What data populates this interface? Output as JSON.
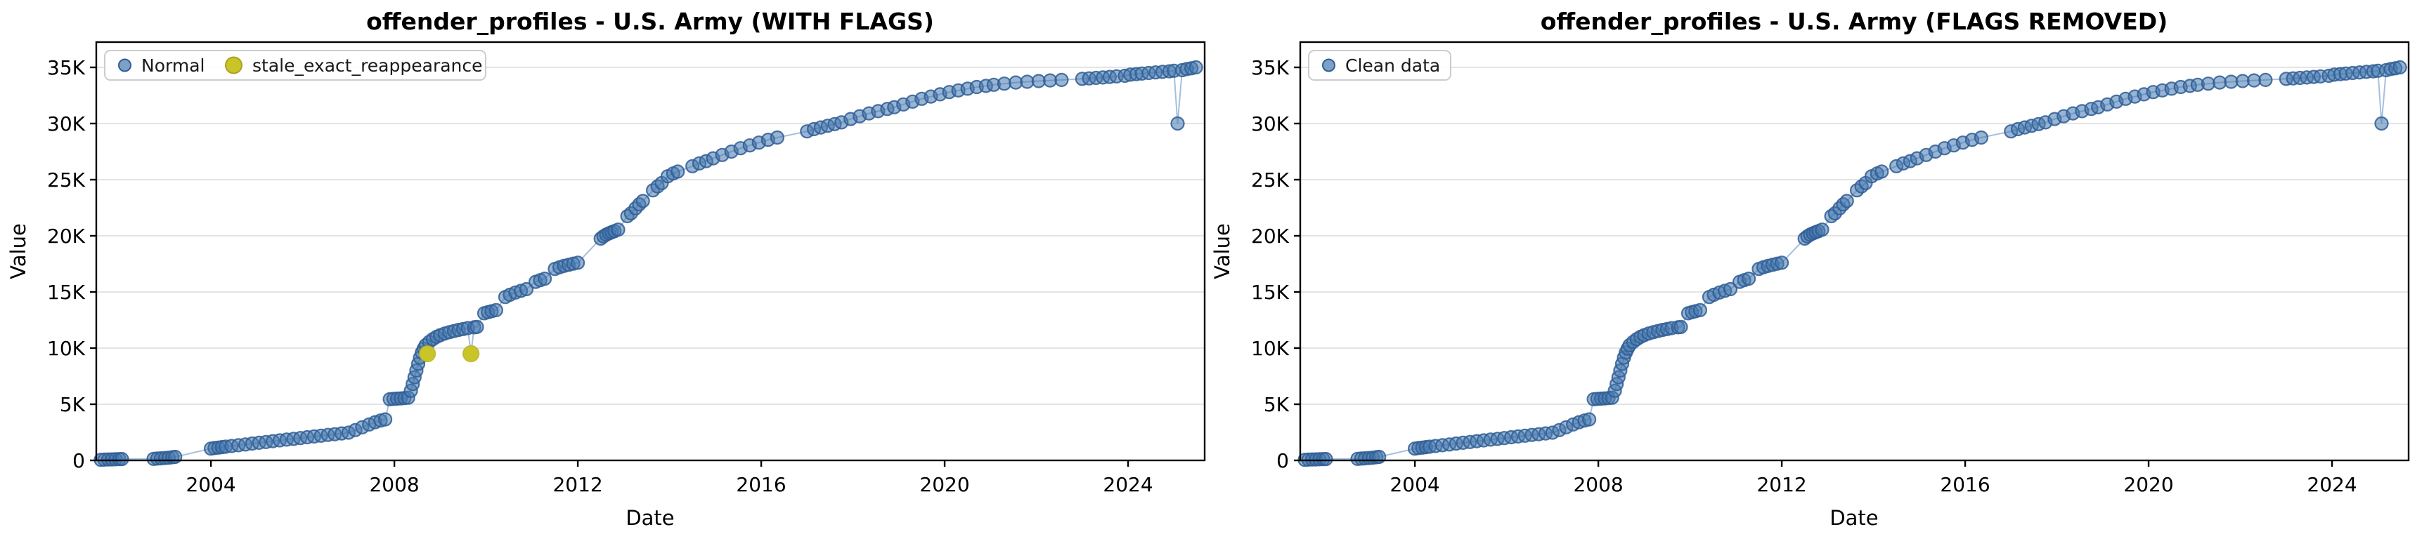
{
  "chart_data": {
    "type": "scatter",
    "xlabel": "Date",
    "ylabel": "Value",
    "xlim": [
      2001.5,
      2025.67
    ],
    "ylim": [
      0,
      37250
    ],
    "x_ticks": [
      2004,
      2008,
      2012,
      2016,
      2020,
      2024
    ],
    "y_ticks": [
      0,
      5000,
      10000,
      15000,
      20000,
      25000,
      30000,
      35000
    ],
    "y_tick_labels": [
      "0",
      "5K",
      "10K",
      "15K",
      "20K",
      "25K",
      "30K",
      "35K"
    ],
    "grid": "horizontal-only",
    "legend_position": "upper-left",
    "colors": {
      "normal_fill": "#4678ae",
      "normal_edge": "#2f5d94",
      "line": "#9db8d8",
      "flag_fill": "#c9c427",
      "flag_edge": "#a9a41e",
      "grid": "#dcdcdc",
      "spine": "#000000",
      "background": "#ffffff"
    },
    "series_points": [
      [
        2001.6,
        50
      ],
      [
        2001.68,
        70
      ],
      [
        2001.76,
        80
      ],
      [
        2001.84,
        90
      ],
      [
        2001.92,
        100
      ],
      [
        2002.0,
        110
      ],
      [
        2002.06,
        120
      ],
      [
        2002.75,
        140
      ],
      [
        2002.83,
        160
      ],
      [
        2002.91,
        180
      ],
      [
        2003.0,
        210
      ],
      [
        2003.08,
        240
      ],
      [
        2003.16,
        280
      ],
      [
        2003.22,
        310
      ],
      [
        2004.0,
        1050
      ],
      [
        2004.08,
        1100
      ],
      [
        2004.16,
        1140
      ],
      [
        2004.24,
        1180
      ],
      [
        2004.32,
        1220
      ],
      [
        2004.45,
        1280
      ],
      [
        2004.6,
        1350
      ],
      [
        2004.75,
        1420
      ],
      [
        2004.9,
        1500
      ],
      [
        2005.05,
        1570
      ],
      [
        2005.2,
        1640
      ],
      [
        2005.35,
        1710
      ],
      [
        2005.5,
        1780
      ],
      [
        2005.65,
        1850
      ],
      [
        2005.8,
        1920
      ],
      [
        2005.95,
        1990
      ],
      [
        2006.1,
        2060
      ],
      [
        2006.25,
        2130
      ],
      [
        2006.4,
        2200
      ],
      [
        2006.55,
        2270
      ],
      [
        2006.7,
        2330
      ],
      [
        2006.85,
        2400
      ],
      [
        2007.0,
        2470
      ],
      [
        2007.15,
        2700
      ],
      [
        2007.3,
        2950
      ],
      [
        2007.45,
        3200
      ],
      [
        2007.58,
        3400
      ],
      [
        2007.7,
        3550
      ],
      [
        2007.8,
        3650
      ],
      [
        2007.9,
        5450
      ],
      [
        2007.98,
        5480
      ],
      [
        2008.06,
        5500
      ],
      [
        2008.14,
        5520
      ],
      [
        2008.22,
        5550
      ],
      [
        2008.3,
        5580
      ],
      [
        2008.36,
        6200
      ],
      [
        2008.4,
        6800
      ],
      [
        2008.44,
        7400
      ],
      [
        2008.48,
        8000
      ],
      [
        2008.52,
        8600
      ],
      [
        2008.56,
        9150
      ],
      [
        2008.6,
        9600
      ],
      [
        2008.64,
        9950
      ],
      [
        2008.68,
        10250
      ],
      [
        2008.76,
        10550
      ],
      [
        2008.84,
        10800
      ],
      [
        2008.92,
        11000
      ],
      [
        2009.0,
        11150
      ],
      [
        2009.1,
        11300
      ],
      [
        2009.2,
        11420
      ],
      [
        2009.3,
        11520
      ],
      [
        2009.4,
        11620
      ],
      [
        2009.5,
        11700
      ],
      [
        2009.6,
        11780
      ],
      [
        2009.74,
        11850
      ],
      [
        2009.8,
        11880
      ],
      [
        2009.96,
        13100
      ],
      [
        2010.04,
        13200
      ],
      [
        2010.12,
        13280
      ],
      [
        2010.22,
        13380
      ],
      [
        2010.42,
        14550
      ],
      [
        2010.52,
        14750
      ],
      [
        2010.64,
        14950
      ],
      [
        2010.76,
        15100
      ],
      [
        2010.88,
        15250
      ],
      [
        2011.08,
        15900
      ],
      [
        2011.18,
        16050
      ],
      [
        2011.28,
        16180
      ],
      [
        2011.5,
        17050
      ],
      [
        2011.6,
        17200
      ],
      [
        2011.7,
        17320
      ],
      [
        2011.8,
        17420
      ],
      [
        2011.9,
        17520
      ],
      [
        2012.0,
        17600
      ],
      [
        2012.5,
        19750
      ],
      [
        2012.56,
        19950
      ],
      [
        2012.62,
        20100
      ],
      [
        2012.68,
        20220
      ],
      [
        2012.74,
        20320
      ],
      [
        2012.8,
        20420
      ],
      [
        2012.88,
        20550
      ],
      [
        2013.08,
        21750
      ],
      [
        2013.16,
        22000
      ],
      [
        2013.26,
        22450
      ],
      [
        2013.34,
        22800
      ],
      [
        2013.42,
        23100
      ],
      [
        2013.64,
        24050
      ],
      [
        2013.74,
        24400
      ],
      [
        2013.83,
        24700
      ],
      [
        2013.96,
        25300
      ],
      [
        2014.08,
        25550
      ],
      [
        2014.18,
        25720
      ],
      [
        2014.5,
        26200
      ],
      [
        2014.65,
        26450
      ],
      [
        2014.8,
        26650
      ],
      [
        2014.95,
        26900
      ],
      [
        2015.15,
        27200
      ],
      [
        2015.35,
        27500
      ],
      [
        2015.55,
        27800
      ],
      [
        2015.75,
        28050
      ],
      [
        2015.95,
        28300
      ],
      [
        2016.15,
        28550
      ],
      [
        2016.35,
        28750
      ],
      [
        2017.0,
        29300
      ],
      [
        2017.15,
        29500
      ],
      [
        2017.3,
        29650
      ],
      [
        2017.45,
        29800
      ],
      [
        2017.6,
        29950
      ],
      [
        2017.75,
        30100
      ],
      [
        2017.95,
        30400
      ],
      [
        2018.15,
        30650
      ],
      [
        2018.35,
        30900
      ],
      [
        2018.55,
        31100
      ],
      [
        2018.75,
        31300
      ],
      [
        2018.9,
        31450
      ],
      [
        2019.1,
        31700
      ],
      [
        2019.3,
        31950
      ],
      [
        2019.5,
        32200
      ],
      [
        2019.7,
        32400
      ],
      [
        2019.9,
        32600
      ],
      [
        2020.1,
        32800
      ],
      [
        2020.3,
        32950
      ],
      [
        2020.5,
        33100
      ],
      [
        2020.7,
        33250
      ],
      [
        2020.9,
        33350
      ],
      [
        2021.07,
        33450
      ],
      [
        2021.3,
        33550
      ],
      [
        2021.55,
        33650
      ],
      [
        2021.8,
        33720
      ],
      [
        2022.05,
        33780
      ],
      [
        2022.3,
        33840
      ],
      [
        2022.55,
        33880
      ],
      [
        2023.0,
        33980
      ],
      [
        2023.15,
        34020
      ],
      [
        2023.3,
        34060
      ],
      [
        2023.45,
        34100
      ],
      [
        2023.6,
        34150
      ],
      [
        2023.75,
        34200
      ],
      [
        2023.93,
        34250
      ],
      [
        2024.05,
        34350
      ],
      [
        2024.18,
        34400
      ],
      [
        2024.3,
        34450
      ],
      [
        2024.45,
        34500
      ],
      [
        2024.6,
        34550
      ],
      [
        2024.75,
        34600
      ],
      [
        2024.9,
        34650
      ],
      [
        2025.0,
        34700
      ],
      [
        2025.08,
        30000
      ],
      [
        2025.18,
        34750
      ],
      [
        2025.28,
        34850
      ],
      [
        2025.38,
        34920
      ],
      [
        2025.48,
        35000
      ]
    ],
    "flagged_points": [
      [
        2008.72,
        9500
      ],
      [
        2009.67,
        9500
      ]
    ],
    "flag_type": "stale_exact_reappearance",
    "charts": [
      {
        "title": "offender_profiles - U.S. Army (WITH FLAGS)",
        "include_flags": true,
        "legend": [
          {
            "label": "Normal",
            "swatch": "normal"
          },
          {
            "label": "stale_exact_reappearance",
            "swatch": "flag"
          }
        ]
      },
      {
        "title": "offender_profiles - U.S. Army (FLAGS REMOVED)",
        "include_flags": false,
        "legend": [
          {
            "label": "Clean data",
            "swatch": "normal"
          }
        ]
      }
    ]
  }
}
